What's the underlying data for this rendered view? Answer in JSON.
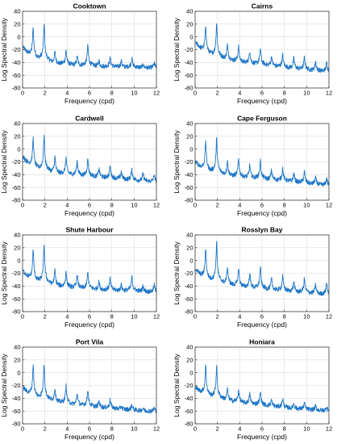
{
  "chart_data": [
    {
      "type": "line",
      "title": "Cooktown",
      "xlabel": "Frequency (cpd)",
      "ylabel": "Log Spectral Density",
      "xlim": [
        0,
        12
      ],
      "ylim": [
        -80,
        40
      ],
      "xticks": [
        0,
        2,
        4,
        6,
        8,
        10,
        12
      ],
      "yticks": [
        40,
        20,
        0,
        -20,
        -40,
        -60,
        -80
      ],
      "grid": true,
      "series_color": "#1f77c8",
      "base": [
        [
          0.05,
          -18
        ],
        [
          0.5,
          -28
        ],
        [
          1,
          -33
        ],
        [
          2,
          -38
        ],
        [
          3,
          -42
        ],
        [
          4,
          -44
        ],
        [
          6,
          -46
        ],
        [
          8,
          -47
        ],
        [
          10,
          -48
        ],
        [
          12,
          -49
        ]
      ],
      "peaks": [
        [
          0.95,
          15
        ],
        [
          1.93,
          20
        ],
        [
          2.9,
          -23
        ],
        [
          3.9,
          -21
        ],
        [
          4.9,
          -30
        ],
        [
          5.85,
          -13
        ],
        [
          6.85,
          -37
        ],
        [
          7.85,
          -33
        ],
        [
          8.85,
          -38
        ],
        [
          9.8,
          -33
        ],
        [
          10.8,
          -43
        ],
        [
          11.8,
          -41
        ]
      ]
    },
    {
      "type": "line",
      "title": "Cairns",
      "xlabel": "Frequency (cpd)",
      "ylabel": "Log Spectral Density",
      "xlim": [
        0,
        12
      ],
      "ylim": [
        -80,
        40
      ],
      "xticks": [
        0,
        2,
        4,
        6,
        8,
        10,
        12
      ],
      "yticks": [
        40,
        20,
        0,
        -20,
        -40,
        -60,
        -80
      ],
      "grid": true,
      "series_color": "#1f77c8",
      "base": [
        [
          0.05,
          -10
        ],
        [
          0.5,
          -20
        ],
        [
          1,
          -26
        ],
        [
          2,
          -32
        ],
        [
          3,
          -36
        ],
        [
          4,
          -40
        ],
        [
          6,
          -44
        ],
        [
          8,
          -48
        ],
        [
          10,
          -52
        ],
        [
          12,
          -55
        ]
      ],
      "peaks": [
        [
          0.95,
          18
        ],
        [
          1.93,
          22
        ],
        [
          2.9,
          -12
        ],
        [
          3.9,
          -15
        ],
        [
          4.9,
          -22
        ],
        [
          5.85,
          -18
        ],
        [
          6.85,
          -30
        ],
        [
          7.85,
          -28
        ],
        [
          8.85,
          -33
        ],
        [
          9.8,
          -32
        ],
        [
          10.8,
          -38
        ],
        [
          11.8,
          -40
        ]
      ]
    },
    {
      "type": "line",
      "title": "Cardwell",
      "xlabel": "Frequency (cpd)",
      "ylabel": "Log Spectral Density",
      "xlim": [
        0,
        12
      ],
      "ylim": [
        -80,
        40
      ],
      "xticks": [
        0,
        2,
        4,
        6,
        8,
        10,
        12
      ],
      "yticks": [
        40,
        20,
        0,
        -20,
        -40,
        -60,
        -80
      ],
      "grid": true,
      "series_color": "#1f77c8",
      "base": [
        [
          0.05,
          -14
        ],
        [
          0.5,
          -24
        ],
        [
          1,
          -30
        ],
        [
          2,
          -34
        ],
        [
          3,
          -38
        ],
        [
          4,
          -40
        ],
        [
          6,
          -43
        ],
        [
          8,
          -46
        ],
        [
          10,
          -49
        ],
        [
          12,
          -52
        ]
      ],
      "peaks": [
        [
          0.95,
          18
        ],
        [
          1.93,
          22
        ],
        [
          2.9,
          -12
        ],
        [
          3.9,
          -13
        ],
        [
          4.9,
          -18
        ],
        [
          5.85,
          -15
        ],
        [
          6.85,
          -30
        ],
        [
          7.85,
          -27
        ],
        [
          8.85,
          -35
        ],
        [
          9.8,
          -32
        ],
        [
          10.8,
          -38
        ],
        [
          11.8,
          -40
        ]
      ]
    },
    {
      "type": "line",
      "title": "Cape Ferguson",
      "xlabel": "Frequency (cpd)",
      "ylabel": "Log Spectral Density",
      "xlim": [
        0,
        12
      ],
      "ylim": [
        -80,
        40
      ],
      "xticks": [
        0,
        2,
        4,
        6,
        8,
        10,
        12
      ],
      "yticks": [
        40,
        20,
        0,
        -20,
        -40,
        -60,
        -80
      ],
      "grid": true,
      "series_color": "#1f77c8",
      "base": [
        [
          0.05,
          -22
        ],
        [
          0.5,
          -30
        ],
        [
          1,
          -34
        ],
        [
          2,
          -38
        ],
        [
          3,
          -42
        ],
        [
          4,
          -44
        ],
        [
          6,
          -47
        ],
        [
          8,
          -50
        ],
        [
          10,
          -54
        ],
        [
          12,
          -58
        ]
      ],
      "peaks": [
        [
          0.95,
          13
        ],
        [
          1.93,
          16
        ],
        [
          2.9,
          -18
        ],
        [
          3.9,
          -15
        ],
        [
          4.9,
          -25
        ],
        [
          5.85,
          -18
        ],
        [
          6.85,
          -33
        ],
        [
          7.85,
          -30
        ],
        [
          8.85,
          -38
        ],
        [
          9.8,
          -35
        ],
        [
          10.8,
          -44
        ],
        [
          11.8,
          -45
        ]
      ]
    },
    {
      "type": "line",
      "title": "Shute Harbour",
      "xlabel": "Frequency (cpd)",
      "ylabel": "Log Spectral Density",
      "xlim": [
        0,
        12
      ],
      "ylim": [
        -80,
        40
      ],
      "xticks": [
        0,
        2,
        4,
        6,
        8,
        10,
        12
      ],
      "yticks": [
        40,
        20,
        0,
        -20,
        -40,
        -60,
        -80
      ],
      "grid": true,
      "series_color": "#1f77c8",
      "base": [
        [
          0.05,
          -18
        ],
        [
          0.5,
          -28
        ],
        [
          1,
          -32
        ],
        [
          2,
          -36
        ],
        [
          3,
          -40
        ],
        [
          4,
          -42
        ],
        [
          6,
          -45
        ],
        [
          8,
          -47
        ],
        [
          10,
          -48
        ],
        [
          12,
          -50
        ]
      ],
      "peaks": [
        [
          0.95,
          18
        ],
        [
          1.93,
          25
        ],
        [
          2.9,
          -15
        ],
        [
          3.9,
          -18
        ],
        [
          4.9,
          -23
        ],
        [
          5.85,
          -18
        ],
        [
          6.85,
          -33
        ],
        [
          7.85,
          -28
        ],
        [
          8.85,
          -38
        ],
        [
          9.8,
          -25
        ],
        [
          10.8,
          -40
        ],
        [
          11.8,
          -38
        ]
      ]
    },
    {
      "type": "line",
      "title": "Rosslyn Bay",
      "xlabel": "Frequency (cpd)",
      "ylabel": "Log Spectral Density",
      "xlim": [
        0,
        12
      ],
      "ylim": [
        -80,
        40
      ],
      "xticks": [
        0,
        2,
        4,
        6,
        8,
        10,
        12
      ],
      "yticks": [
        40,
        20,
        0,
        -20,
        -40,
        -60,
        -80
      ],
      "grid": true,
      "series_color": "#1f77c8",
      "base": [
        [
          0.05,
          -15
        ],
        [
          0.5,
          -25
        ],
        [
          1,
          -30
        ],
        [
          2,
          -34
        ],
        [
          3,
          -38
        ],
        [
          4,
          -41
        ],
        [
          6,
          -45
        ],
        [
          8,
          -48
        ],
        [
          10,
          -51
        ],
        [
          12,
          -54
        ]
      ],
      "peaks": [
        [
          0.95,
          20
        ],
        [
          1.93,
          28
        ],
        [
          2.9,
          -10
        ],
        [
          3.9,
          -12
        ],
        [
          4.9,
          -20
        ],
        [
          5.85,
          -10
        ],
        [
          6.85,
          -28
        ],
        [
          7.85,
          -24
        ],
        [
          8.85,
          -33
        ],
        [
          9.8,
          -28
        ],
        [
          10.8,
          -38
        ],
        [
          11.8,
          -35
        ]
      ]
    },
    {
      "type": "line",
      "title": "Port Vila",
      "xlabel": "Frequency (cpd)",
      "ylabel": "Log Spectral Density",
      "xlim": [
        0,
        12
      ],
      "ylim": [
        -80,
        40
      ],
      "xticks": [
        0,
        2,
        4,
        6,
        8,
        10,
        12
      ],
      "yticks": [
        40,
        20,
        0,
        -20,
        -40,
        -60,
        -80
      ],
      "grid": true,
      "series_color": "#1f77c8",
      "base": [
        [
          0.05,
          -25
        ],
        [
          0.5,
          -34
        ],
        [
          1,
          -38
        ],
        [
          2,
          -42
        ],
        [
          3,
          -46
        ],
        [
          4,
          -49
        ],
        [
          6,
          -53
        ],
        [
          8,
          -56
        ],
        [
          10,
          -59
        ],
        [
          12,
          -61
        ]
      ],
      "peaks": [
        [
          0.95,
          13
        ],
        [
          1.93,
          15
        ],
        [
          2.9,
          -24
        ],
        [
          3.9,
          -20
        ],
        [
          4.9,
          -32
        ],
        [
          5.85,
          -26
        ],
        [
          6.85,
          -44
        ],
        [
          7.85,
          -42
        ],
        [
          8.85,
          -52
        ],
        [
          9.8,
          -50
        ],
        [
          10.8,
          -55
        ],
        [
          11.8,
          -55
        ]
      ]
    },
    {
      "type": "line",
      "title": "Honiara",
      "xlabel": "Frequency (cpd)",
      "ylabel": "Log Spectral Density",
      "xlim": [
        0,
        12
      ],
      "ylim": [
        -80,
        40
      ],
      "xticks": [
        0,
        2,
        4,
        6,
        8,
        10,
        12
      ],
      "yticks": [
        40,
        20,
        0,
        -20,
        -40,
        -60,
        -80
      ],
      "grid": true,
      "series_color": "#1f77c8",
      "base": [
        [
          0.05,
          -25
        ],
        [
          0.5,
          -32
        ],
        [
          1,
          -36
        ],
        [
          2,
          -40
        ],
        [
          3,
          -44
        ],
        [
          4,
          -47
        ],
        [
          6,
          -51
        ],
        [
          8,
          -55
        ],
        [
          10,
          -58
        ],
        [
          12,
          -60
        ]
      ],
      "peaks": [
        [
          0.95,
          12
        ],
        [
          1.93,
          10
        ],
        [
          2.9,
          -25
        ],
        [
          3.9,
          -27
        ],
        [
          4.9,
          -33
        ],
        [
          5.85,
          -30
        ],
        [
          6.85,
          -42
        ],
        [
          7.85,
          -40
        ],
        [
          8.85,
          -48
        ],
        [
          9.8,
          -47
        ],
        [
          10.8,
          -52
        ],
        [
          11.8,
          -53
        ]
      ]
    }
  ]
}
